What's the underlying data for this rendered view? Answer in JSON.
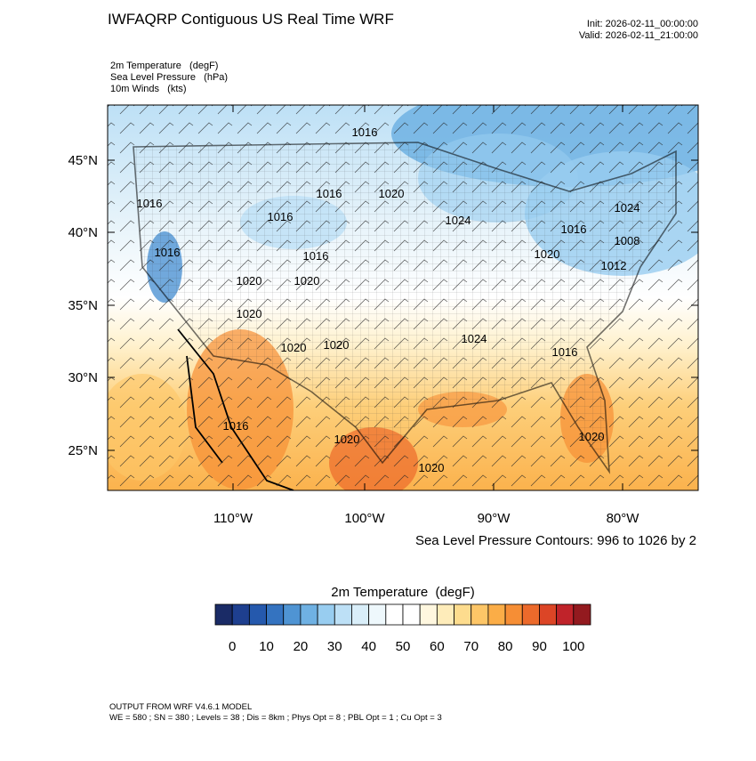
{
  "header": {
    "title": "IWFAQRP Contiguous US Real Time WRF",
    "init": "Init: 2026-02-11_00:00:00",
    "valid": "Valid: 2026-02-11_21:00:00"
  },
  "fields": [
    "2m Temperature   (degF)",
    "Sea Level Pressure   (hPa)",
    "10m Winds   (kts)"
  ],
  "map": {
    "lat_labels": [
      "45°N",
      "40°N",
      "35°N",
      "30°N",
      "25°N"
    ],
    "lon_labels": [
      "110°W",
      "100°W",
      "90°W",
      "80°W"
    ],
    "contour_labels": [
      "1016",
      "1016",
      "1020",
      "1016",
      "1016",
      "1024",
      "1024",
      "1016",
      "1008",
      "1016",
      "1016",
      "1020",
      "1020",
      "1020",
      "1012",
      "1020",
      "1020",
      "1020",
      "1024",
      "1016",
      "1016",
      "1020",
      "1020",
      "1020"
    ],
    "contour_note": "Sea Level Pressure Contours: 996 to 1026 by 2"
  },
  "colorbar": {
    "title": "2m Temperature  (degF)",
    "labels": [
      0,
      10,
      20,
      30,
      40,
      50,
      60,
      70,
      80,
      90,
      100
    ],
    "colors": [
      "#1a2b66",
      "#1e3f8f",
      "#2559ad",
      "#3473c0",
      "#4f94d3",
      "#6fb1e3",
      "#98cdf0",
      "#bde0f6",
      "#d9eef9",
      "#eef8fc",
      "#ffffff",
      "#ffffff",
      "#fff7df",
      "#feecba",
      "#fddc8e",
      "#fdc667",
      "#fbad47",
      "#f68e35",
      "#ec6a2b",
      "#dc4526",
      "#c0232a",
      "#931a1f"
    ]
  },
  "footer": [
    "OUTPUT FROM WRF V4.6.1 MODEL",
    "WE = 580 ; SN = 380 ; Levels = 38 ; Dis = 8km ; Phys Opt = 8 ; PBL Opt = 1 ; Cu Opt = 3"
  ]
}
